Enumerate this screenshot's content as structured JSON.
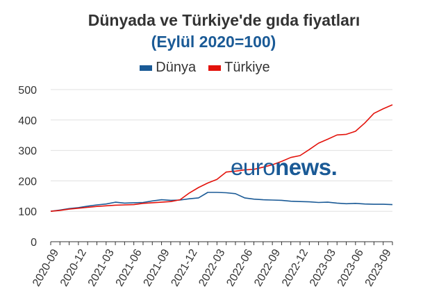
{
  "title": "Dünyada ve Türkiye'de gıda fiyatları",
  "subtitle": "(Eylül 2020=100)",
  "watermark": {
    "light": "euro",
    "bold": "news",
    "dot": "."
  },
  "colors": {
    "dunya": "#1a5a96",
    "turkiye": "#e3120b",
    "grid": "#e0e0e0",
    "axis": "#333333"
  },
  "chart_data": {
    "type": "line",
    "title": "Dünyada ve Türkiye'de gıda fiyatları",
    "subtitle": "(Eylül 2020=100)",
    "xlabel": "",
    "ylabel": "",
    "ylim": [
      0,
      500
    ],
    "yticks": [
      0,
      100,
      200,
      300,
      400,
      500
    ],
    "grid": true,
    "legend_position": "top",
    "x": [
      "2020-09",
      "2020-10",
      "2020-11",
      "2020-12",
      "2021-01",
      "2021-02",
      "2021-03",
      "2021-04",
      "2021-05",
      "2021-06",
      "2021-07",
      "2021-08",
      "2021-09",
      "2021-10",
      "2021-11",
      "2021-12",
      "2022-01",
      "2022-02",
      "2022-03",
      "2022-04",
      "2022-05",
      "2022-06",
      "2022-07",
      "2022-08",
      "2022-09",
      "2022-10",
      "2022-11",
      "2022-12",
      "2023-01",
      "2023-02",
      "2023-03",
      "2023-04",
      "2023-05",
      "2023-06",
      "2023-07",
      "2023-08",
      "2023-09",
      "2023-10"
    ],
    "xtick_labels": [
      "2020-09",
      "2020-12",
      "2021-03",
      "2021-06",
      "2021-09",
      "2021-12",
      "2022-03",
      "2022-06",
      "2022-09",
      "2022-12",
      "2023-03",
      "2023-06",
      "2023-09"
    ],
    "series": [
      {
        "name": "Dünya",
        "color": "#1a5a96",
        "values": [
          100,
          104,
          109,
          112,
          117,
          121,
          124,
          130,
          127,
          128,
          129,
          134,
          138,
          136,
          137,
          141,
          144,
          162,
          162,
          161,
          158,
          144,
          140,
          138,
          137,
          136,
          133,
          132,
          131,
          129,
          130,
          127,
          125,
          126,
          124,
          123,
          123,
          122
        ]
      },
      {
        "name": "Türkiye",
        "color": "#e3120b",
        "values": [
          100,
          103,
          107,
          110,
          113,
          116,
          118,
          120,
          121,
          122,
          126,
          128,
          130,
          132,
          138,
          160,
          178,
          193,
          205,
          229,
          232,
          236,
          238,
          245,
          253,
          264,
          277,
          283,
          303,
          324,
          337,
          351,
          353,
          363,
          390,
          422,
          437,
          450
        ]
      }
    ]
  }
}
